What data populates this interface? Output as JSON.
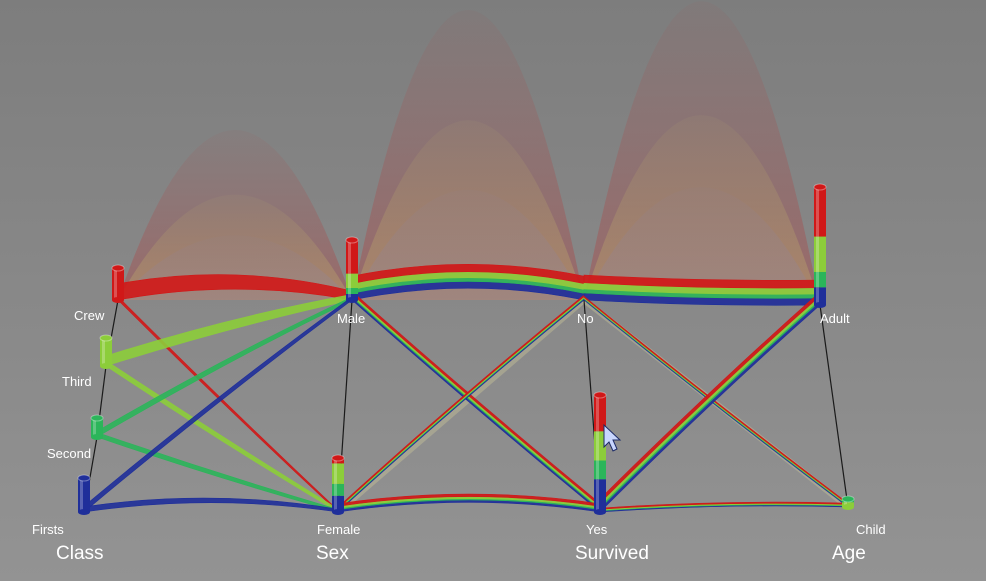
{
  "chart_data": {
    "type": "parallel-sets-3d",
    "axes": [
      {
        "name": "Class",
        "categories": [
          "Crew",
          "Third",
          "Second",
          "Firsts"
        ]
      },
      {
        "name": "Sex",
        "categories": [
          "Male",
          "Female"
        ]
      },
      {
        "name": "Survived",
        "categories": [
          "No",
          "Yes"
        ]
      },
      {
        "name": "Age",
        "categories": [
          "Adult",
          "Child"
        ]
      }
    ],
    "category_colors": {
      "Crew": "#d01818",
      "Third": "#8ccd3a",
      "Second": "#2bb55a",
      "Firsts": "#1f2f9a"
    },
    "bars": [
      {
        "axis": "Class",
        "category": "Crew",
        "segments": [
          {
            "cls": "Crew",
            "share": 1
          }
        ]
      },
      {
        "axis": "Class",
        "category": "Third",
        "segments": [
          {
            "cls": "Third",
            "share": 1
          }
        ]
      },
      {
        "axis": "Class",
        "category": "Second",
        "segments": [
          {
            "cls": "Second",
            "share": 1
          }
        ]
      },
      {
        "axis": "Class",
        "category": "Firsts",
        "segments": [
          {
            "cls": "Firsts",
            "share": 1
          }
        ]
      },
      {
        "axis": "Sex",
        "category": "Male",
        "segments": [
          {
            "cls": "Firsts",
            "share": 0.1
          },
          {
            "cls": "Second",
            "share": 0.1
          },
          {
            "cls": "Third",
            "share": 0.24
          },
          {
            "cls": "Crew",
            "share": 0.56
          }
        ]
      },
      {
        "axis": "Sex",
        "category": "Female",
        "segments": [
          {
            "cls": "Firsts",
            "share": 0.3
          },
          {
            "cls": "Second",
            "share": 0.22
          },
          {
            "cls": "Third",
            "share": 0.38
          },
          {
            "cls": "Crew",
            "share": 0.1
          }
        ]
      },
      {
        "axis": "Survived",
        "category": "Yes",
        "segments": [
          {
            "cls": "Firsts",
            "share": 0.28
          },
          {
            "cls": "Second",
            "share": 0.16
          },
          {
            "cls": "Third",
            "share": 0.25
          },
          {
            "cls": "Crew",
            "share": 0.31
          }
        ]
      },
      {
        "axis": "Age",
        "category": "Adult",
        "segments": [
          {
            "cls": "Firsts",
            "share": 0.15
          },
          {
            "cls": "Second",
            "share": 0.13
          },
          {
            "cls": "Third",
            "share": 0.3
          },
          {
            "cls": "Crew",
            "share": 0.42
          }
        ]
      },
      {
        "axis": "Age",
        "category": "Child",
        "segments": [
          {
            "cls": "Third",
            "share": 0.6
          },
          {
            "cls": "Second",
            "share": 0.4
          }
        ]
      }
    ],
    "flows": [
      {
        "from": "Crew",
        "to": "Male",
        "cls": "Crew",
        "weight": 862
      },
      {
        "from": "Crew",
        "to": "Female",
        "cls": "Crew",
        "weight": 23
      },
      {
        "from": "Third",
        "to": "Male",
        "cls": "Third",
        "weight": 462
      },
      {
        "from": "Third",
        "to": "Female",
        "cls": "Third",
        "weight": 165
      },
      {
        "from": "Second",
        "to": "Male",
        "cls": "Second",
        "weight": 179
      },
      {
        "from": "Second",
        "to": "Female",
        "cls": "Second",
        "weight": 106
      },
      {
        "from": "Firsts",
        "to": "Male",
        "cls": "Firsts",
        "weight": 180
      },
      {
        "from": "Firsts",
        "to": "Female",
        "cls": "Firsts",
        "weight": 145
      },
      {
        "from": "Male",
        "to": "No",
        "cls": "all",
        "weight": 1364
      },
      {
        "from": "Male",
        "to": "Yes",
        "cls": "all",
        "weight": 367
      },
      {
        "from": "Female",
        "to": "No",
        "cls": "all",
        "weight": 126
      },
      {
        "from": "Female",
        "to": "Yes",
        "cls": "all",
        "weight": 344
      },
      {
        "from": "No",
        "to": "Adult",
        "cls": "all",
        "weight": 1438
      },
      {
        "from": "No",
        "to": "Child",
        "cls": "all",
        "weight": 52
      },
      {
        "from": "Yes",
        "to": "Adult",
        "cls": "all",
        "weight": 654
      },
      {
        "from": "Yes",
        "to": "Child",
        "cls": "all",
        "weight": 57
      }
    ],
    "grid": false,
    "legend": "none"
  }
}
